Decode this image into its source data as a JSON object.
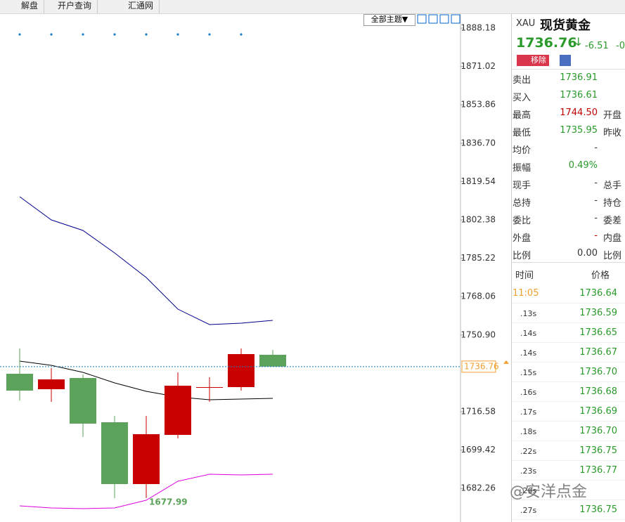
{
  "toolbar": {
    "tabs": [
      "解盘",
      "开户查询",
      "汇通网"
    ],
    "theme_button": "全部主题▼"
  },
  "chart": {
    "type": "candlestick",
    "ylim": [
      1667.25,
      1894.47
    ],
    "yticks": [
      1888.18,
      1871.02,
      1853.86,
      {
        "value": 1836.7,
        "label": "1836.70"
      },
      1819.54,
      1802.38,
      1785.22,
      1768.06,
      {
        "value": 1750.9,
        "label": "1750.90"
      },
      1716.58,
      1699.42,
      1682.26
    ],
    "up_color": "#c80000",
    "down_color": "#5ba35b",
    "open": [
      1733.56,
      1726.65,
      1731.67,
      1711.87,
      1684.22,
      1706.22,
      1727.27,
      1727.59,
      1742.05
    ],
    "high": [
      1744.87,
      1736.07,
      1733.25,
      1714.7,
      1714.7,
      1734.19,
      1731.98,
      1744.87,
      1744.2
    ],
    "low": [
      1721.58,
      1720.99,
      1705.28,
      1677.93,
      1677.99,
      1704.65,
      1720.99,
      1726.02,
      1736.76
    ],
    "close": [
      1726.02,
      1731.04,
      1711.24,
      1684.22,
      1706.53,
      1728.22,
      1727.59,
      1742.36,
      1736.76
    ],
    "lines": [
      {
        "color": "#00008b",
        "values": [
          1812.76,
          1802.38,
          1797.67,
          1787.61,
          1776.61,
          1762.47,
          1755.56,
          1756.19,
          1757.44
        ]
      },
      {
        "color": "#000000",
        "values": [
          1739.22,
          1737.33,
          1734.19,
          1729.48,
          1725.7,
          1723.19,
          1721.93,
          1722.25,
          1722.56
        ]
      },
      {
        "color": "#e000e0",
        "values": [
          1674.48,
          1673.54,
          1673.22,
          1673.54,
          1676.99,
          1685.48,
          1688.62,
          1688.31,
          1688.62
        ]
      }
    ],
    "current_price": 1736.76,
    "low_label": 1677.99
  },
  "quote": {
    "symbol": "XAU",
    "name": "现货黄金",
    "price": "1736.76",
    "change": "-6.51",
    "change_pct": "-0",
    "remove_button": "移除"
  },
  "stats": [
    {
      "label": "卖出",
      "value": "1736.91",
      "color": "#2a9a2a"
    },
    {
      "label": "买入",
      "value": "1736.61",
      "color": "#2a9a2a"
    },
    {
      "label": "最高",
      "value": "1744.50",
      "color": "#c00000",
      "extra": "开盘"
    },
    {
      "label": "最低",
      "value": "1735.95",
      "color": "#2a9a2a",
      "extra": "昨收"
    },
    {
      "label": "均价",
      "value": "-",
      "color": "#333333"
    },
    {
      "label": "振幅",
      "value": "0.49%",
      "color": "#2a9a2a"
    },
    {
      "label": "现手",
      "value": "-",
      "color": "#333333",
      "extra": "总手"
    },
    {
      "label": "总持",
      "value": "-",
      "color": "#333333",
      "extra": "持仓"
    },
    {
      "label": "委比",
      "value": "-",
      "color": "#333333",
      "extra": "委差"
    },
    {
      "label": "外盘",
      "value": "-",
      "color": "#c00000",
      "extra": "内盘"
    },
    {
      "label": "比例",
      "value": "0.00",
      "color": "#333333",
      "extra": "比例"
    }
  ],
  "trades": {
    "header": [
      "时间",
      "价格"
    ],
    "rows": [
      {
        "time": "11:05",
        "price": "1736.64"
      },
      {
        "time": ".13s",
        "price": "1736.59"
      },
      {
        "time": ".14s",
        "price": "1736.65"
      },
      {
        "time": ".14s",
        "price": "1736.67"
      },
      {
        "time": ".15s",
        "price": "1736.70"
      },
      {
        "time": ".16s",
        "price": "1736.68"
      },
      {
        "time": ".17s",
        "price": "1736.69"
      },
      {
        "time": ".18s",
        "price": "1736.70"
      },
      {
        "time": ".22s",
        "price": "1736.75"
      },
      {
        "time": ".23s",
        "price": "1736.77"
      },
      {
        "time": ".26s"
      },
      {
        "time": ".27s",
        "price": "1736.75"
      }
    ]
  },
  "watermark": "@安洋点金"
}
